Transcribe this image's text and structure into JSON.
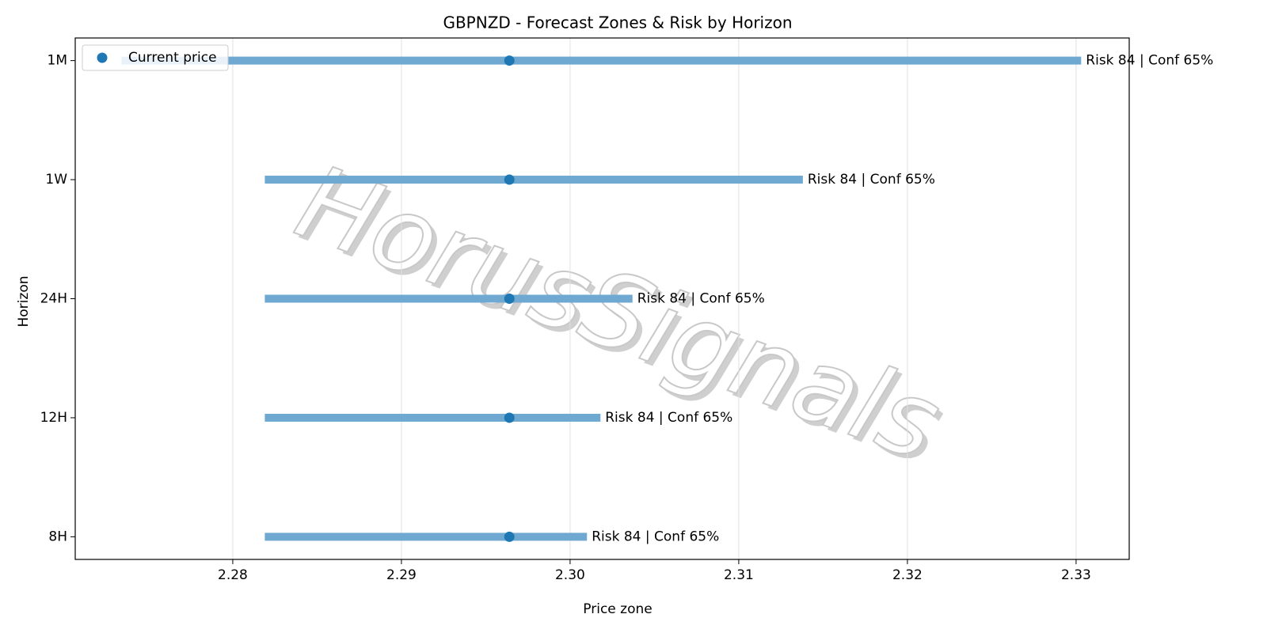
{
  "chart_data": {
    "type": "range",
    "title": "GBPNZD - Forecast Zones & Risk by Horizon",
    "xlabel": "Price zone",
    "ylabel": "Horizon",
    "categories": [
      "8H",
      "12H",
      "24H",
      "1W",
      "1M"
    ],
    "low": [
      2.2819,
      2.2819,
      2.2819,
      2.2819,
      2.2734
    ],
    "high": [
      2.301,
      2.3018,
      2.3037,
      2.3138,
      2.3303
    ],
    "range_color": "#6fa8d0",
    "annotations": [
      "Risk 84 | Conf 65%",
      "Risk 84 | Conf 65%",
      "Risk 84 | Conf 65%",
      "Risk 84 | Conf 65%",
      "Risk 84 | Conf 65%"
    ],
    "series": [
      {
        "name": "Current price",
        "color": "#1f77b4",
        "values": [
          2.2964,
          2.2964,
          2.2964,
          2.2964,
          2.2964
        ]
      }
    ],
    "xlim": [
      2.27066,
      2.33315
    ],
    "xticks": [
      2.28,
      2.29,
      {
        "value": 2.3,
        "label": "2.30"
      },
      2.31,
      2.32,
      2.33
    ],
    "grid": true,
    "legend": "upper left",
    "watermark": "HorusSignals"
  }
}
